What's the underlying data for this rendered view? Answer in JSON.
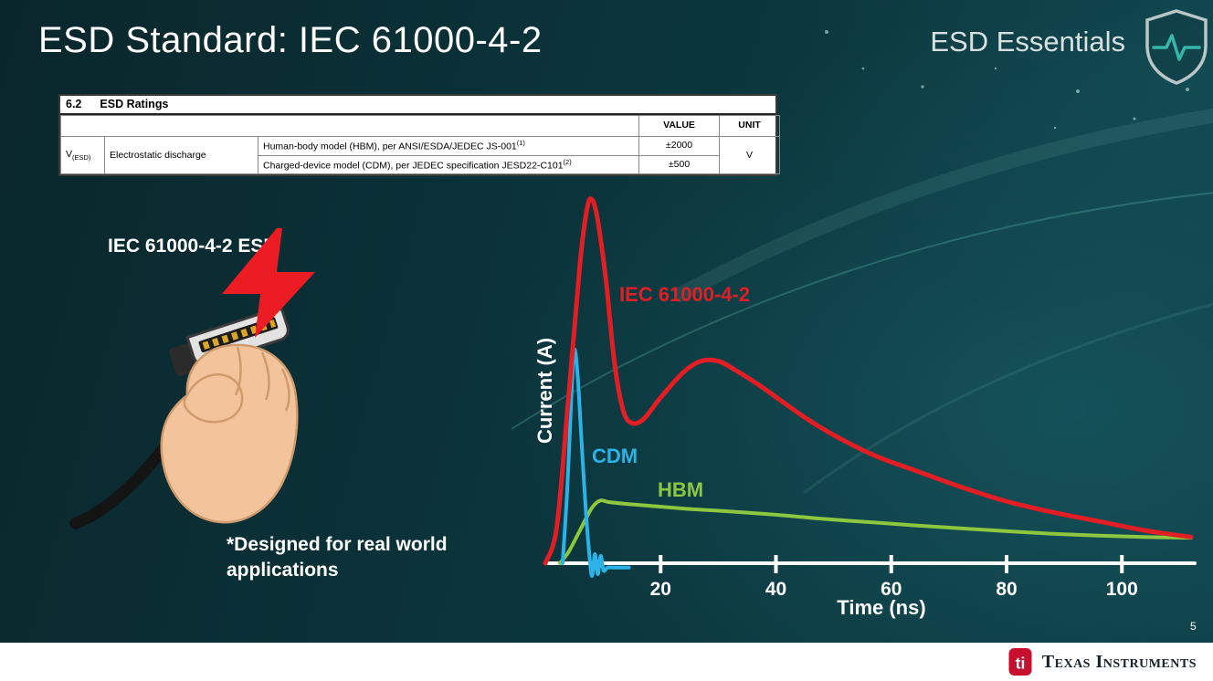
{
  "slide": {
    "title": "ESD Standard: IEC 61000-4-2",
    "series_label": "ESD Essentials",
    "page_number": "5"
  },
  "ratings_table": {
    "section_number": "6.2",
    "section_title": "ESD Ratings",
    "value_header": "VALUE",
    "unit_header": "UNIT",
    "param_symbol": "V",
    "param_subscript": "(ESD)",
    "param_name": "Electrostatic discharge",
    "rows": [
      {
        "condition": "Human-body model (HBM), per ANSI/ESDA/JEDEC JS-001",
        "footnote": "(1)",
        "value": "±2000"
      },
      {
        "condition": "Charged-device model (CDM), per JEDEC specification JESD22-C101",
        "footnote": "(2)",
        "value": "±500"
      }
    ],
    "unit": "V"
  },
  "illustration": {
    "label": "IEC 61000-4-2 ESD",
    "note_line1": "*Designed for real world",
    "note_line2": "applications"
  },
  "chart_data": {
    "type": "line",
    "title": "",
    "xlabel": "Time (ns)",
    "ylabel": "Current (A)",
    "x_ticks": [
      20,
      40,
      60,
      80,
      100
    ],
    "xlim": [
      0,
      112
    ],
    "ylim": [
      -0.05,
      1.05
    ],
    "grid": false,
    "legend_position": "inline-labels",
    "series": [
      {
        "name": "IEC 61000-4-2",
        "color": "#e21d23",
        "points": [
          [
            0,
            0
          ],
          [
            2,
            0.1
          ],
          [
            4,
            0.45
          ],
          [
            6,
            0.82
          ],
          [
            7.2,
            0.97
          ],
          [
            8,
            1.0
          ],
          [
            9,
            0.95
          ],
          [
            10.5,
            0.78
          ],
          [
            12,
            0.55
          ],
          [
            13.5,
            0.42
          ],
          [
            15,
            0.385
          ],
          [
            17,
            0.395
          ],
          [
            20,
            0.455
          ],
          [
            24,
            0.525
          ],
          [
            27,
            0.555
          ],
          [
            30,
            0.555
          ],
          [
            33,
            0.53
          ],
          [
            37,
            0.49
          ],
          [
            41,
            0.445
          ],
          [
            46,
            0.39
          ],
          [
            52,
            0.335
          ],
          [
            58,
            0.29
          ],
          [
            65,
            0.25
          ],
          [
            72,
            0.21
          ],
          [
            80,
            0.17
          ],
          [
            88,
            0.14
          ],
          [
            96,
            0.115
          ],
          [
            104,
            0.09
          ],
          [
            112,
            0.072
          ]
        ]
      },
      {
        "name": "CDM",
        "color": "#2bb3e8",
        "points": [
          [
            3,
            0
          ],
          [
            3.8,
            0.2
          ],
          [
            4.5,
            0.45
          ],
          [
            5,
            0.585
          ],
          [
            5.6,
            0.52
          ],
          [
            6.3,
            0.33
          ],
          [
            7,
            0.15
          ],
          [
            7.6,
            0.03
          ],
          [
            8.1,
            -0.035
          ],
          [
            8.6,
            0.025
          ],
          [
            9.1,
            -0.03
          ],
          [
            9.6,
            0.02
          ],
          [
            10.1,
            -0.02
          ],
          [
            10.8,
            -0.012
          ],
          [
            12,
            -0.012
          ],
          [
            14.5,
            -0.012
          ]
        ]
      },
      {
        "name": "HBM",
        "color": "#8dc63f",
        "points": [
          [
            2.5,
            0
          ],
          [
            4,
            0.03
          ],
          [
            6,
            0.09
          ],
          [
            8,
            0.15
          ],
          [
            9.5,
            0.172
          ],
          [
            11,
            0.168
          ],
          [
            14,
            0.163
          ],
          [
            18,
            0.158
          ],
          [
            24,
            0.15
          ],
          [
            32,
            0.142
          ],
          [
            40,
            0.133
          ],
          [
            48,
            0.122
          ],
          [
            56,
            0.113
          ],
          [
            64,
            0.104
          ],
          [
            72,
            0.096
          ],
          [
            80,
            0.088
          ],
          [
            88,
            0.081
          ],
          [
            96,
            0.076
          ],
          [
            104,
            0.072
          ],
          [
            112,
            0.07
          ]
        ]
      }
    ]
  },
  "footer": {
    "brand": "Texas Instruments"
  }
}
